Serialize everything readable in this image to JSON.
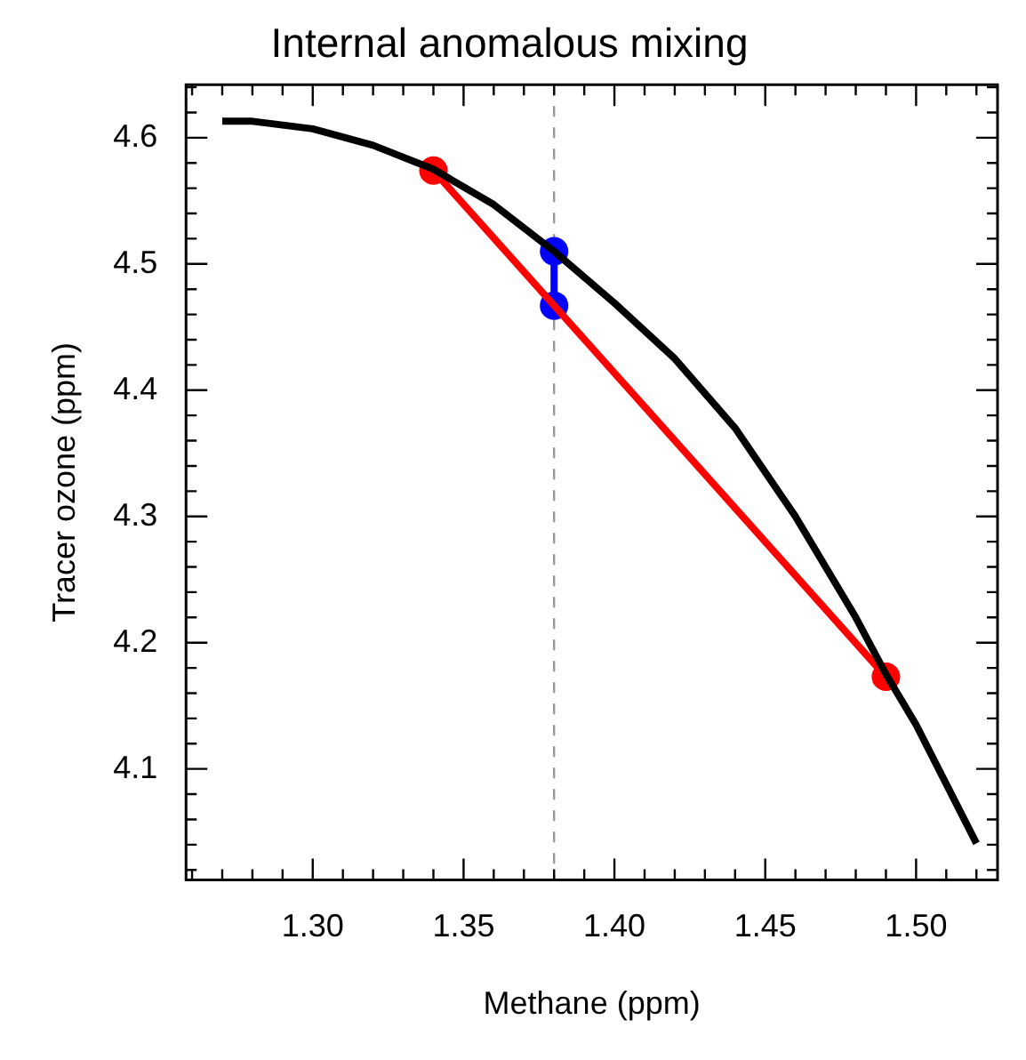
{
  "chart_data": {
    "type": "line",
    "title": "Internal anomalous mixing",
    "xlabel": "Methane (ppm)",
    "ylabel": "Tracer ozone (ppm)",
    "xlim": [
      1.258,
      1.527
    ],
    "ylim": [
      4.012,
      4.642
    ],
    "xticks": [
      {
        "value": 1.26,
        "label": null
      },
      {
        "value": 1.27,
        "label": null
      },
      {
        "value": 1.28,
        "label": null
      },
      {
        "value": 1.29,
        "label": null
      },
      {
        "value": 1.3,
        "label": "1.30"
      },
      {
        "value": 1.31,
        "label": null
      },
      {
        "value": 1.32,
        "label": null
      },
      {
        "value": 1.33,
        "label": null
      },
      {
        "value": 1.34,
        "label": null
      },
      {
        "value": 1.35,
        "label": "1.35"
      },
      {
        "value": 1.36,
        "label": null
      },
      {
        "value": 1.37,
        "label": null
      },
      {
        "value": 1.38,
        "label": null
      },
      {
        "value": 1.39,
        "label": null
      },
      {
        "value": 1.4,
        "label": "1.40"
      },
      {
        "value": 1.41,
        "label": null
      },
      {
        "value": 1.42,
        "label": null
      },
      {
        "value": 1.43,
        "label": null
      },
      {
        "value": 1.44,
        "label": null
      },
      {
        "value": 1.45,
        "label": "1.45"
      },
      {
        "value": 1.46,
        "label": null
      },
      {
        "value": 1.47,
        "label": null
      },
      {
        "value": 1.48,
        "label": null
      },
      {
        "value": 1.49,
        "label": null
      },
      {
        "value": 1.5,
        "label": "1.50"
      },
      {
        "value": 1.51,
        "label": null
      },
      {
        "value": 1.52,
        "label": null
      }
    ],
    "yticks": [
      {
        "value": 4.02,
        "label": null
      },
      {
        "value": 4.04,
        "label": null
      },
      {
        "value": 4.06,
        "label": null
      },
      {
        "value": 4.08,
        "label": null
      },
      4.1,
      {
        "value": 4.12,
        "label": null
      },
      {
        "value": 4.14,
        "label": null
      },
      {
        "value": 4.16,
        "label": null
      },
      {
        "value": 4.18,
        "label": null
      },
      4.2,
      {
        "value": 4.22,
        "label": null
      },
      {
        "value": 4.24,
        "label": null
      },
      {
        "value": 4.26,
        "label": null
      },
      {
        "value": 4.28,
        "label": null
      },
      4.3,
      {
        "value": 4.32,
        "label": null
      },
      {
        "value": 4.34,
        "label": null
      },
      {
        "value": 4.36,
        "label": null
      },
      {
        "value": 4.38,
        "label": null
      },
      4.4,
      {
        "value": 4.42,
        "label": null
      },
      {
        "value": 4.44,
        "label": null
      },
      {
        "value": 4.46,
        "label": null
      },
      {
        "value": 4.48,
        "label": null
      },
      4.5,
      {
        "value": 4.52,
        "label": null
      },
      {
        "value": 4.54,
        "label": null
      },
      {
        "value": 4.56,
        "label": null
      },
      {
        "value": 4.58,
        "label": null
      },
      4.6,
      {
        "value": 4.62,
        "label": null
      },
      {
        "value": 4.64,
        "label": null
      }
    ],
    "ref_lines": [
      {
        "axis": "x",
        "value": 1.38,
        "color": "#999999",
        "line_style": "dashed"
      }
    ],
    "series": [
      {
        "color": "#000000",
        "marker": "none",
        "x": [
          1.27,
          1.28,
          1.3,
          1.32,
          1.34,
          1.36,
          1.38,
          1.4,
          1.42,
          1.44,
          1.46,
          1.48,
          1.49,
          1.5,
          1.52
        ],
        "values": [
          4.613,
          4.613,
          4.607,
          4.594,
          4.575,
          4.547,
          4.51,
          4.469,
          4.425,
          4.37,
          4.3,
          4.22,
          4.175,
          4.135,
          4.041
        ]
      },
      {
        "color": "#ff0000",
        "marker": "circle",
        "x": [
          1.34,
          1.49
        ],
        "values": [
          4.574,
          4.173
        ]
      },
      {
        "color": "#0000ff",
        "marker": "circle",
        "x": [
          1.38,
          1.38
        ],
        "values": [
          4.51,
          4.467
        ]
      }
    ]
  }
}
